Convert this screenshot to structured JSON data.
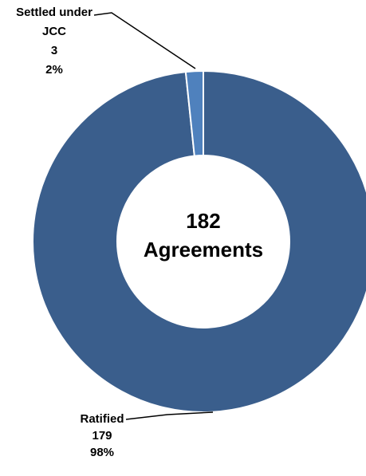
{
  "chart_data": {
    "type": "pie",
    "style": "donut",
    "center_label": {
      "line1": "182",
      "line2": "Agreements"
    },
    "slices": [
      {
        "label_lines": [
          "Ratified",
          "179",
          "98%"
        ],
        "value": 179,
        "percent": "98%",
        "color": "#3A5E8C"
      },
      {
        "label_lines": [
          "Settled under",
          "JCC",
          "3",
          "2%"
        ],
        "value": 3,
        "percent": "2%",
        "color": "#4F81BD"
      }
    ],
    "legend": "none"
  }
}
